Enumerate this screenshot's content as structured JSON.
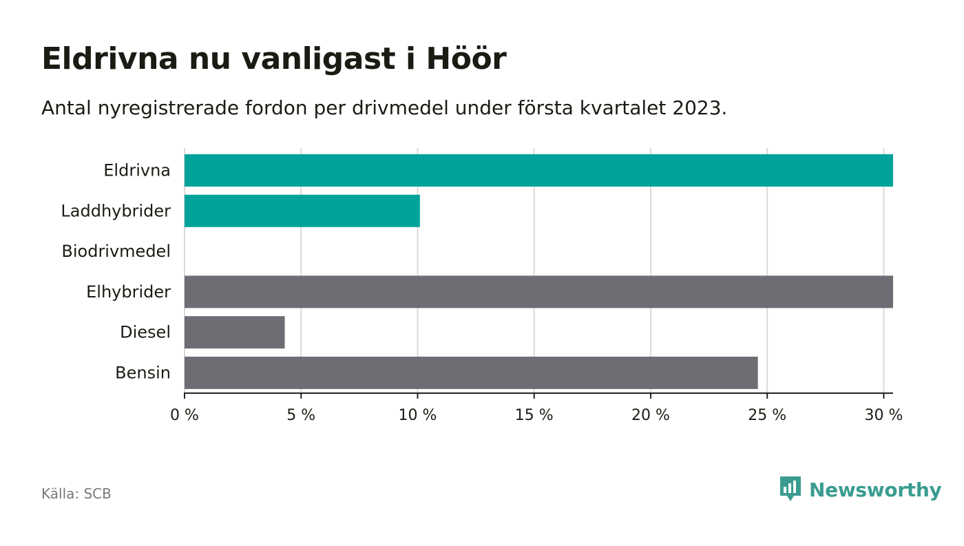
{
  "title": "Eldrivna nu vanligast i Höör",
  "subtitle": "Antal nyregistrerade fordon per drivmedel under första kvartalet 2023.",
  "source": "Källa: SCB",
  "brand": {
    "name": "Newsworthy",
    "icon": "newsworthy-logo-icon",
    "color": "#3a9c90"
  },
  "colors": {
    "highlight": "#00a39a",
    "base": "#6e6d73",
    "grid": "#d9d9d9",
    "axis": "#222222"
  },
  "chart_data": {
    "type": "bar",
    "orientation": "horizontal",
    "categories": [
      "Eldrivna",
      "Laddhybrider",
      "Biodrivmedel",
      "Elhybrider",
      "Diesel",
      "Bensin"
    ],
    "values": [
      30.4,
      10.1,
      0,
      30.4,
      4.3,
      24.6
    ],
    "bar_colors": [
      "#00a39a",
      "#00a39a",
      "#6e6d73",
      "#6e6d73",
      "#6e6d73",
      "#6e6d73"
    ],
    "xlim": [
      0,
      30.4
    ],
    "x_ticks": [
      0,
      5,
      10,
      15,
      20,
      25,
      30
    ],
    "x_tick_labels": [
      "0 %",
      "5 %",
      "10 %",
      "15 %",
      "20 %",
      "25 %",
      "30 %"
    ],
    "xlabel": "",
    "ylabel": "",
    "grid": true
  }
}
